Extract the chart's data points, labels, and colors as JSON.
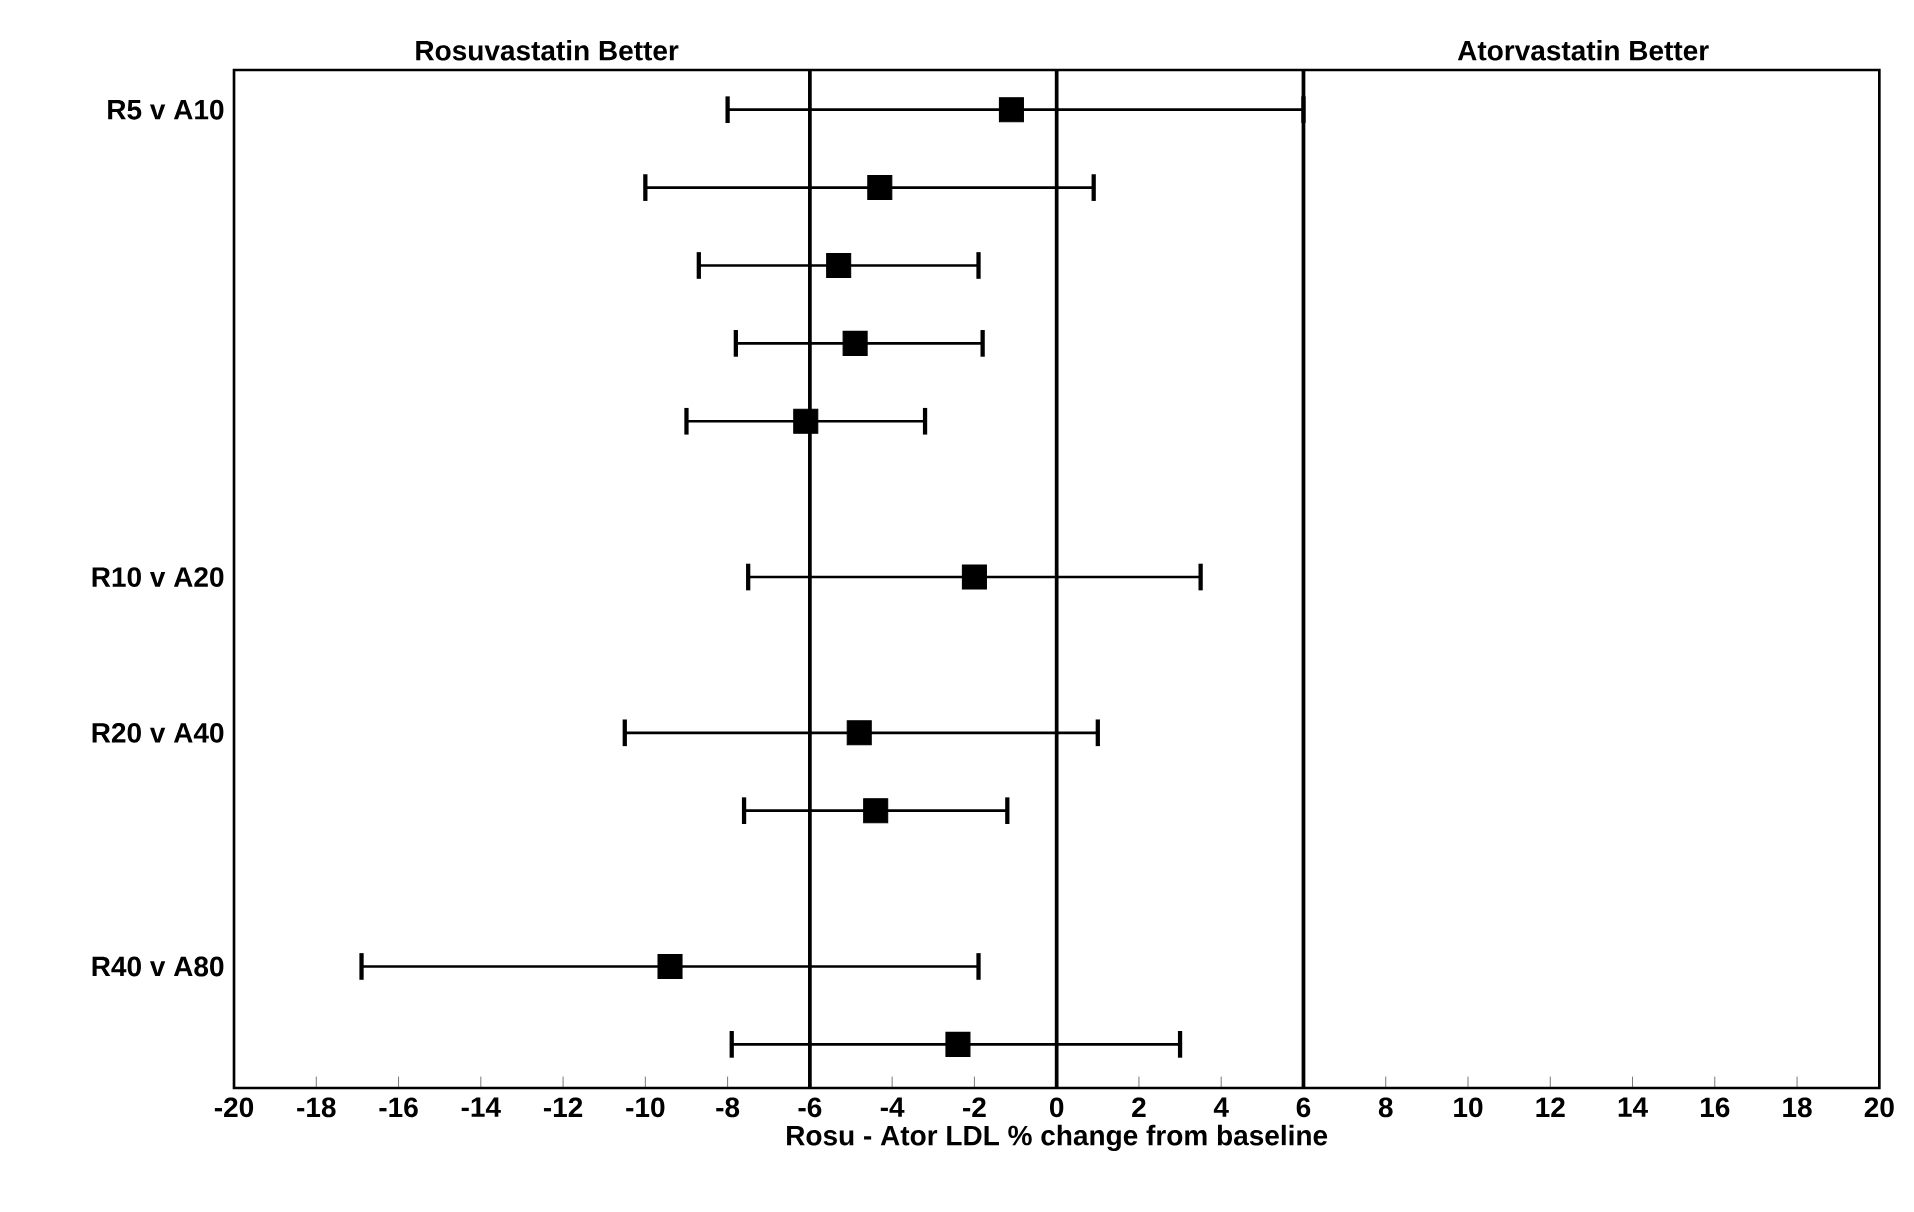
{
  "chart_data": {
    "type": "scatter",
    "orientation": "horizontal",
    "xlabel": "Rosu - Ator LDL % change from baseline",
    "categories": [
      "R5 v A10",
      null,
      null,
      null,
      null,
      null,
      "R10 v A20",
      null,
      "R20 v A40",
      null,
      null,
      "R40 v A80",
      null
    ],
    "values": [
      -1.1,
      -4.3,
      -5.3,
      -4.9,
      -6.1,
      null,
      -2.0,
      null,
      -4.8,
      -4.4,
      null,
      -9.4,
      -2.4
    ],
    "errors": [
      [
        -8.0,
        6.0
      ],
      [
        -10.0,
        0.9
      ],
      [
        -8.7,
        -1.9
      ],
      [
        -7.8,
        -1.8
      ],
      [
        -9.0,
        -3.2
      ],
      null,
      [
        -7.5,
        3.5
      ],
      null,
      [
        -10.5,
        1.0
      ],
      [
        -7.6,
        -1.2
      ],
      null,
      [
        -16.9,
        -1.9
      ],
      [
        -7.9,
        3.0
      ]
    ],
    "color": "#000000",
    "marker": "square",
    "xlim": [
      -20,
      20
    ],
    "xticks": [
      -20,
      -18,
      -16,
      -14,
      -12,
      -10,
      -8,
      -6,
      -4,
      -2,
      0,
      2,
      4,
      6,
      8,
      10,
      12,
      14,
      16,
      18,
      20
    ],
    "ref_lines": [
      {
        "axis": "x",
        "value": -6
      },
      {
        "axis": "x",
        "value": 0
      },
      {
        "axis": "x",
        "value": 6
      }
    ],
    "annotations": [
      "Rosuvastatin Better",
      "Atorvastatin Better"
    ]
  }
}
